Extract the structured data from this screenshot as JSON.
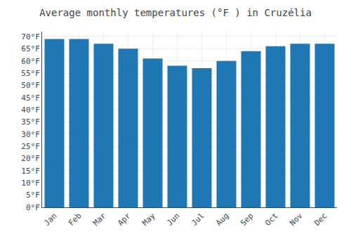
{
  "chart_data": {
    "type": "bar",
    "title": "Average monthly temperatures (°F ) in Cruzélia",
    "categories": [
      "Jan",
      "Feb",
      "Mar",
      "Apr",
      "May",
      "Jun",
      "Jul",
      "Aug",
      "Sep",
      "Oct",
      "Nov",
      "Dec"
    ],
    "values": [
      69,
      69,
      67,
      65,
      61,
      58,
      57,
      60,
      64,
      66,
      67,
      67
    ],
    "ylim": [
      0,
      72
    ],
    "yticks": [
      {
        "value": 0,
        "label": "0°F"
      },
      {
        "value": 5,
        "label": "5°F"
      },
      {
        "value": 10,
        "label": "10°F"
      },
      {
        "value": 15,
        "label": "15°F"
      },
      {
        "value": 20,
        "label": "20°F"
      },
      {
        "value": 25,
        "label": "25°F"
      },
      {
        "value": 30,
        "label": "30°F"
      },
      {
        "value": 35,
        "label": "35°F"
      },
      {
        "value": 40,
        "label": "40°F"
      },
      {
        "value": 45,
        "label": "45°F"
      },
      {
        "value": 50,
        "label": "50°F"
      },
      {
        "value": 55,
        "label": "55°F"
      },
      {
        "value": 60,
        "label": "60°F"
      },
      {
        "value": 65,
        "label": "65°F"
      },
      {
        "value": 70,
        "label": "70°F"
      }
    ],
    "grid": true
  }
}
